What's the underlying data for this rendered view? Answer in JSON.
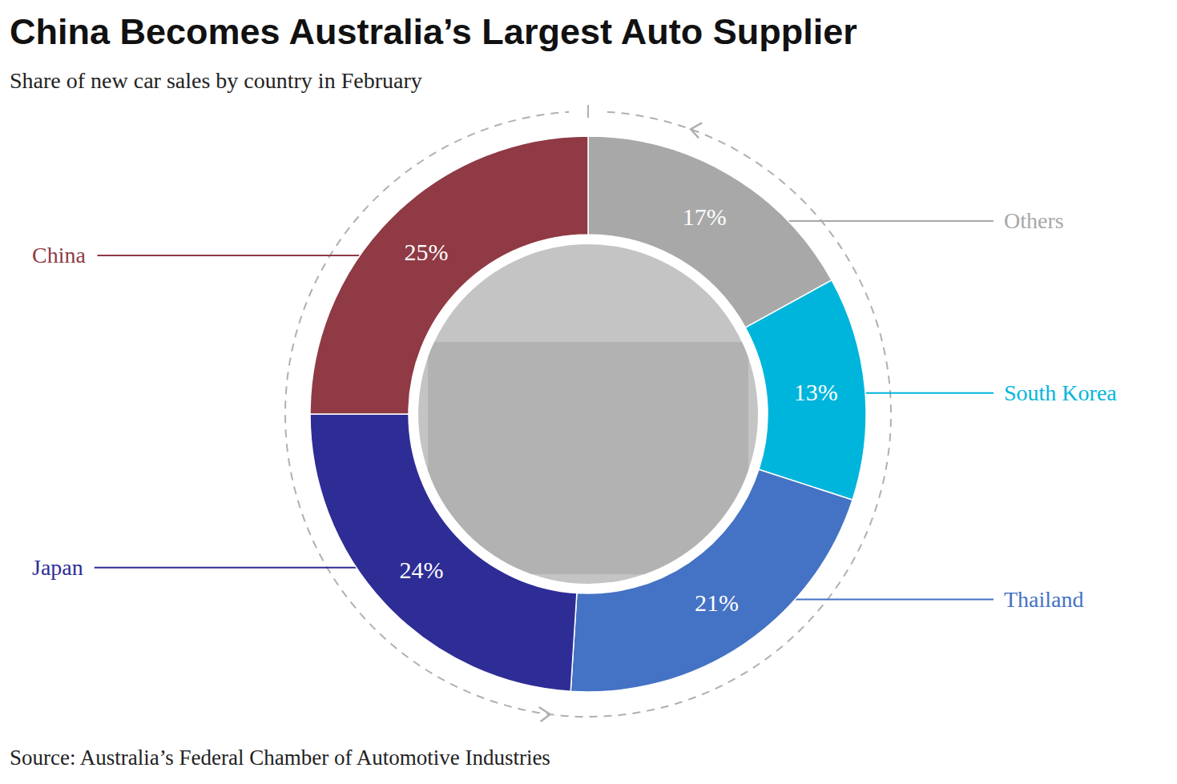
{
  "chart_data": {
    "type": "pie",
    "title": "China Becomes Australia’s Largest Auto Supplier",
    "subtitle": "Share of new car sales by country in February",
    "source": "Source: Australia’s Federal Chamber of Automotive Industries",
    "categories": [
      "Others",
      "South Korea",
      "Thailand",
      "Japan",
      "China"
    ],
    "values": [
      17,
      13,
      21,
      24,
      25
    ],
    "value_labels": [
      "17%",
      "13%",
      "21%",
      "24%",
      "25%"
    ],
    "colors": [
      "#a8a8a8",
      "#00b5dc",
      "#4472c4",
      "#2e2d96",
      "#8f3a44"
    ],
    "data_labels": true
  }
}
